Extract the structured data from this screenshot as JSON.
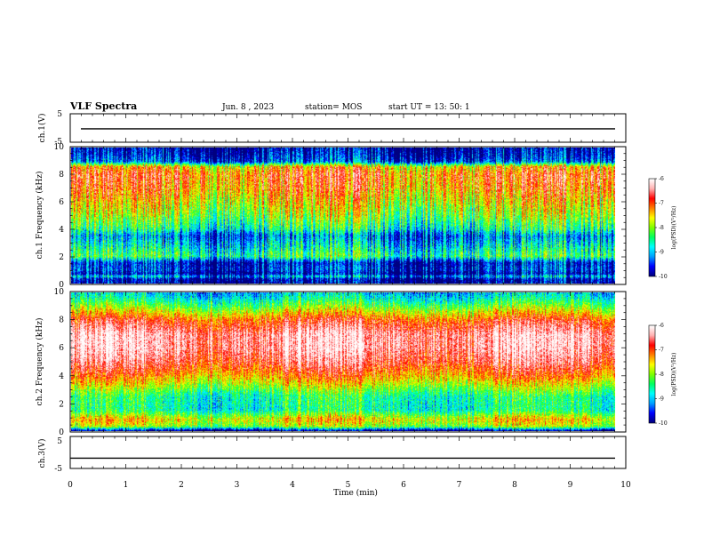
{
  "header": {
    "title": "VLF Spectra",
    "date": "Jun. 8  , 2023",
    "station": "station= MOS",
    "start": "start  UT  =   13: 50: 1"
  },
  "colors": {
    "colormap": [
      "#000080",
      "#0000ff",
      "#00a0ff",
      "#00ffff",
      "#00ff60",
      "#80ff00",
      "#ffff00",
      "#ff8000",
      "#ff0000",
      "#ffb0b0",
      "#ffffff"
    ],
    "trace": "#000000"
  },
  "chart_data": [
    {
      "type": "line",
      "name": "ch.1 waveform",
      "ylabel": "ch.1(V)",
      "ylim": [
        -5,
        5
      ],
      "yticks": [
        "5",
        "-5"
      ],
      "x_range_min": [
        0,
        10
      ],
      "level": -0.3
    },
    {
      "type": "heatmap",
      "name": "ch.1 spectrogram",
      "ylabel": "ch.1  Frequency  (kHz)",
      "xlim_min": [
        0,
        9.85
      ],
      "ylim_khz": [
        0,
        10
      ],
      "yticks": [
        "0",
        "2",
        "4",
        "6",
        "8",
        "10"
      ],
      "colorbar": {
        "label": "log(PSD)(V²/Hz)",
        "range": [
          -10,
          -6
        ],
        "ticks": [
          "-6",
          "-7",
          "-8",
          "-9",
          "-10"
        ]
      },
      "profile_khz_log_psd": [
        [
          0.0,
          -10
        ],
        [
          0.3,
          -10
        ],
        [
          0.5,
          -9.0
        ],
        [
          0.7,
          -10
        ],
        [
          1.0,
          -9.6
        ],
        [
          1.5,
          -9.8
        ],
        [
          2.0,
          -8.4
        ],
        [
          3.0,
          -9.0
        ],
        [
          3.5,
          -9.3
        ],
        [
          4.0,
          -8.6
        ],
        [
          5.0,
          -8.0
        ],
        [
          6.0,
          -7.6
        ],
        [
          7.0,
          -7.2
        ],
        [
          8.0,
          -7.0
        ],
        [
          8.6,
          -7.4
        ],
        [
          9.0,
          -9.5
        ],
        [
          9.5,
          -9.8
        ],
        [
          10.0,
          -10
        ]
      ]
    },
    {
      "type": "heatmap",
      "name": "ch.2 spectrogram",
      "ylabel": "ch.2  Frequency  (kHz)",
      "xlim_min": [
        0,
        9.85
      ],
      "ylim_khz": [
        0,
        10
      ],
      "yticks": [
        "0",
        "2",
        "4",
        "6",
        "8",
        "10"
      ],
      "colorbar": {
        "label": "log(PSD)(V²/Hz)",
        "range": [
          -10,
          -6
        ],
        "ticks": [
          "-6",
          "-7",
          "-8",
          "-9",
          "-10"
        ]
      },
      "profile_khz_log_psd": [
        [
          0.0,
          -10
        ],
        [
          0.3,
          -8.0
        ],
        [
          0.8,
          -7.5
        ],
        [
          1.5,
          -8.6
        ],
        [
          2.5,
          -8.5
        ],
        [
          3.5,
          -7.6
        ],
        [
          4.0,
          -7.2
        ],
        [
          5.0,
          -6.6
        ],
        [
          6.0,
          -6.3
        ],
        [
          7.0,
          -6.3
        ],
        [
          8.0,
          -6.9
        ],
        [
          8.6,
          -7.6
        ],
        [
          9.2,
          -8.3
        ],
        [
          9.7,
          -8.8
        ],
        [
          10.0,
          -9.0
        ]
      ]
    },
    {
      "type": "line",
      "name": "ch.3 waveform",
      "ylabel": "ch.3(V)",
      "ylim": [
        -5,
        5
      ],
      "yticks": [
        "5",
        "-5"
      ],
      "x_range_min": [
        0,
        10
      ],
      "level": -1.8
    }
  ],
  "xaxis": {
    "label": "Time  (min)",
    "range": [
      0,
      10
    ],
    "ticks": [
      "0",
      "1",
      "2",
      "3",
      "4",
      "5",
      "6",
      "7",
      "8",
      "9",
      "10"
    ]
  }
}
